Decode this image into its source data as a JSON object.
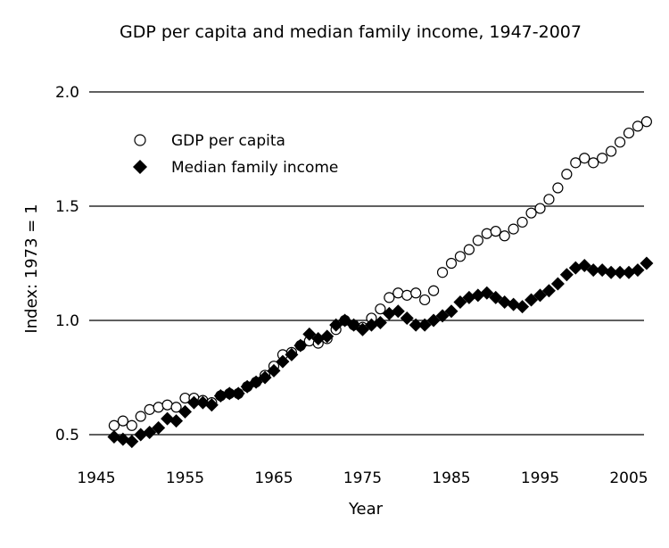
{
  "chart_data": {
    "type": "scatter",
    "title": "GDP per capita and median family income, 1947-2007",
    "xlabel": "Year",
    "ylabel": "Index: 1973 = 1",
    "xlim": [
      1944,
      2008
    ],
    "ylim": [
      0.45,
      2.0
    ],
    "xticks": [
      "1945",
      "1955",
      "1965",
      "1975",
      "1985",
      "1995",
      "2005"
    ],
    "yticks": [
      "0.5",
      "1.0",
      "1.5",
      "2.0"
    ],
    "grid": "horizontal",
    "legend_position": "top-left",
    "x": [
      1947,
      1948,
      1949,
      1950,
      1951,
      1952,
      1953,
      1954,
      1955,
      1956,
      1957,
      1958,
      1959,
      1960,
      1961,
      1962,
      1963,
      1964,
      1965,
      1966,
      1967,
      1968,
      1969,
      1970,
      1971,
      1972,
      1973,
      1974,
      1975,
      1976,
      1977,
      1978,
      1979,
      1980,
      1981,
      1982,
      1983,
      1984,
      1985,
      1986,
      1987,
      1988,
      1989,
      1990,
      1991,
      1992,
      1993,
      1994,
      1995,
      1996,
      1997,
      1998,
      1999,
      2000,
      2001,
      2002,
      2003,
      2004,
      2005,
      2006,
      2007
    ],
    "series": [
      {
        "name": "GDP per capita",
        "marker": "open-circle",
        "color": "#000000",
        "values": [
          0.54,
          0.56,
          0.54,
          0.58,
          0.61,
          0.62,
          0.63,
          0.62,
          0.66,
          0.66,
          0.65,
          0.64,
          0.67,
          0.68,
          0.68,
          0.71,
          0.73,
          0.76,
          0.8,
          0.85,
          0.86,
          0.89,
          0.91,
          0.9,
          0.92,
          0.96,
          1.0,
          0.98,
          0.97,
          1.01,
          1.05,
          1.1,
          1.12,
          1.11,
          1.12,
          1.09,
          1.13,
          1.21,
          1.25,
          1.28,
          1.31,
          1.35,
          1.38,
          1.39,
          1.37,
          1.4,
          1.43,
          1.47,
          1.49,
          1.53,
          1.58,
          1.64,
          1.69,
          1.71,
          1.69,
          1.71,
          1.74,
          1.78,
          1.82,
          1.85,
          1.87
        ]
      },
      {
        "name": "Median family income",
        "marker": "filled-diamond",
        "color": "#000000",
        "values": [
          0.49,
          0.48,
          0.47,
          0.5,
          0.51,
          0.53,
          0.57,
          0.56,
          0.6,
          0.64,
          0.64,
          0.63,
          0.67,
          0.68,
          0.68,
          0.71,
          0.73,
          0.75,
          0.78,
          0.82,
          0.85,
          0.89,
          0.94,
          0.92,
          0.93,
          0.98,
          1.0,
          0.98,
          0.96,
          0.98,
          0.99,
          1.03,
          1.04,
          1.01,
          0.98,
          0.98,
          1.0,
          1.02,
          1.04,
          1.08,
          1.1,
          1.11,
          1.12,
          1.1,
          1.08,
          1.07,
          1.06,
          1.09,
          1.11,
          1.13,
          1.16,
          1.2,
          1.23,
          1.24,
          1.22,
          1.22,
          1.21,
          1.21,
          1.21,
          1.22,
          1.25
        ]
      }
    ]
  }
}
